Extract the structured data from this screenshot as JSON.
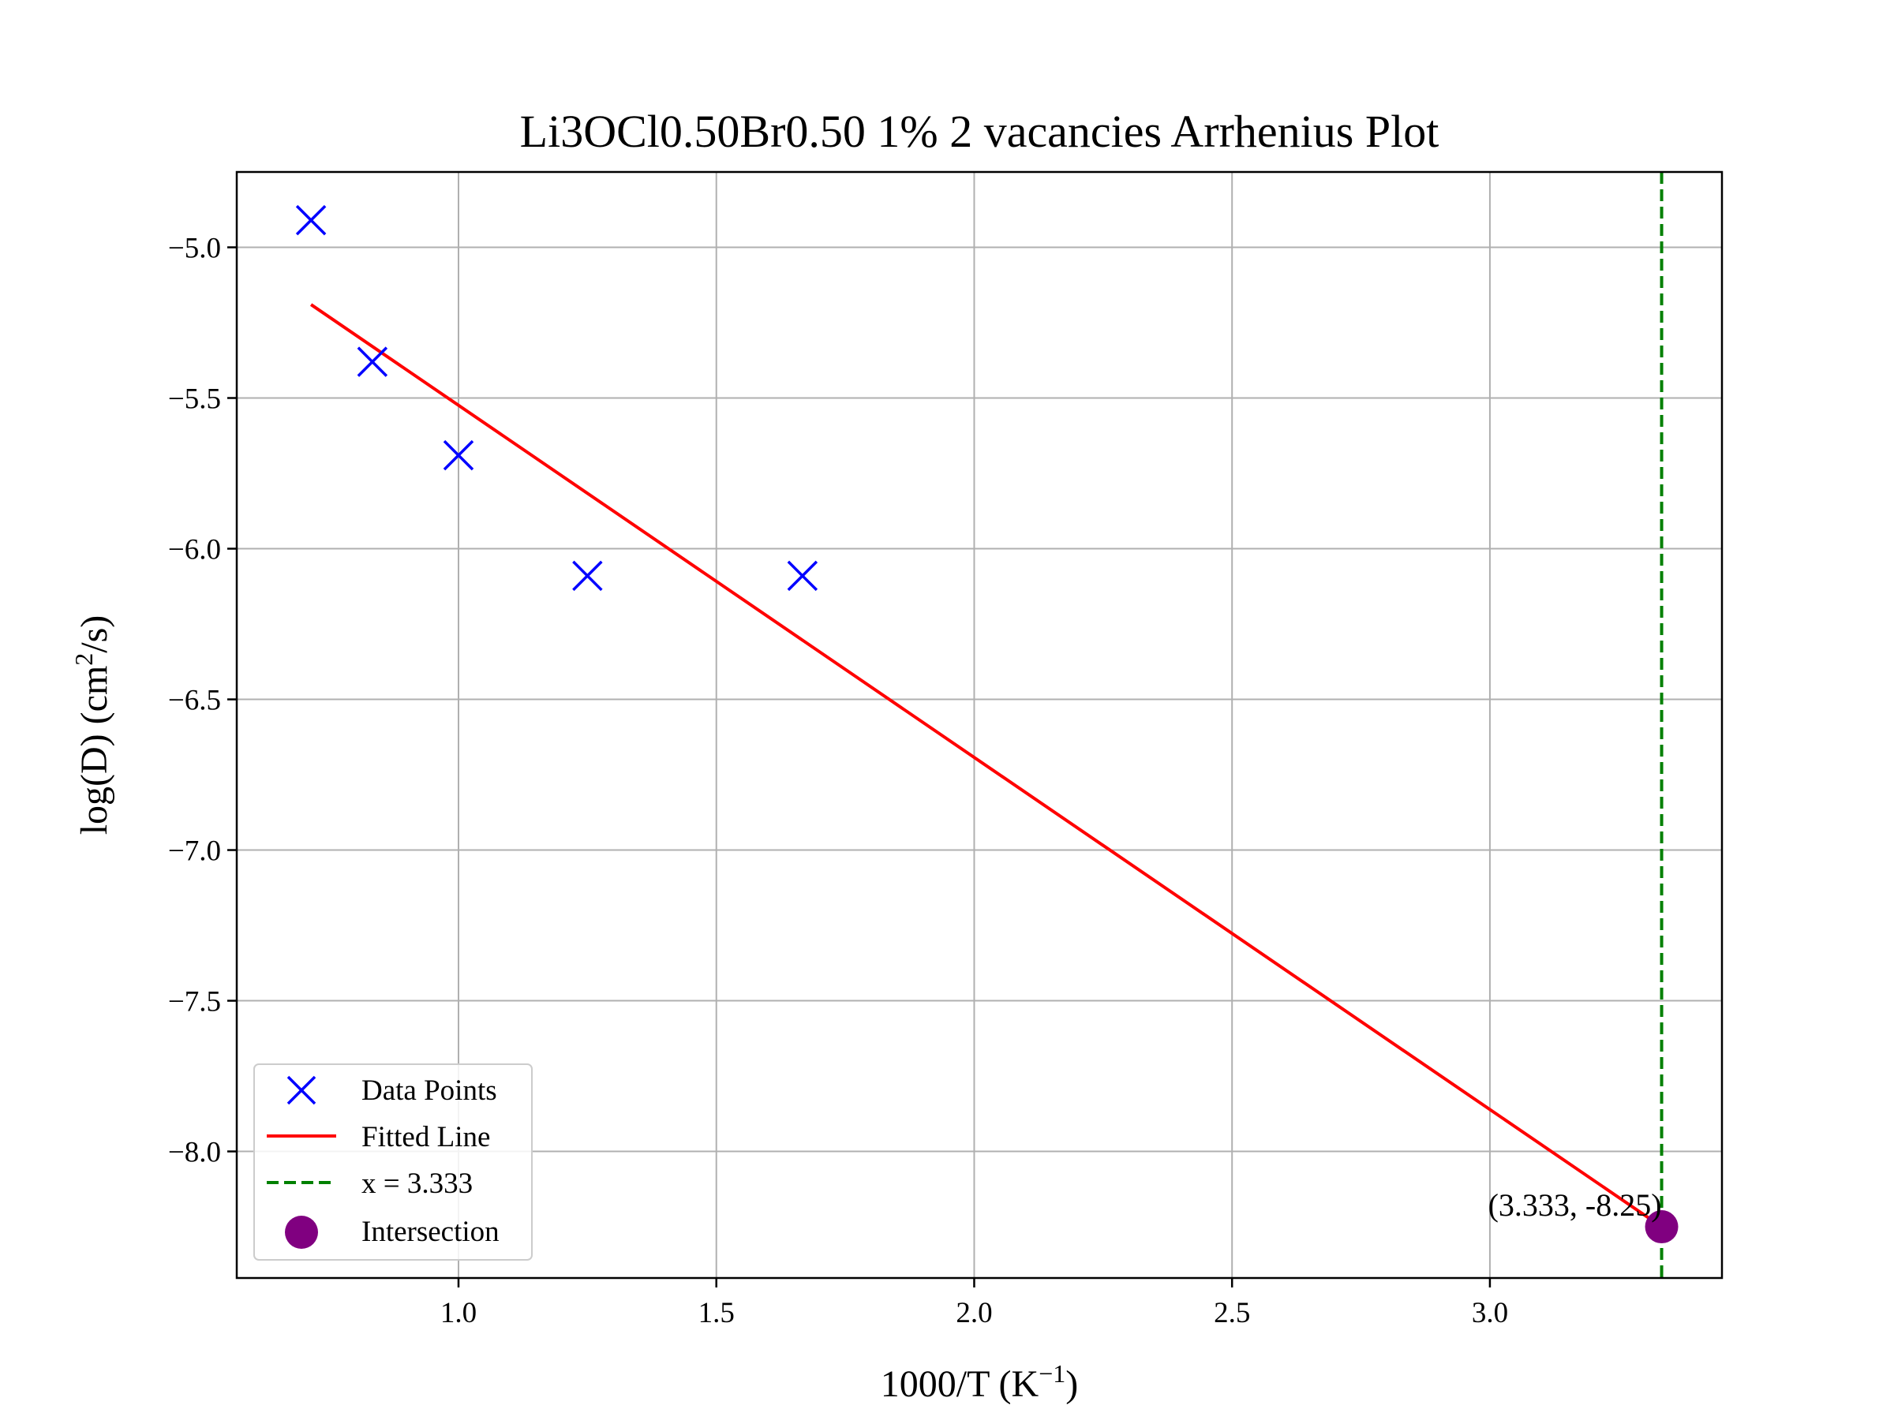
{
  "chart_data": {
    "type": "scatter",
    "title": "Li3OCl0.50Br0.50 1% 2 vacancies Arrhenius Plot",
    "xlabel": "1000/T (K",
    "xlabel_sup": "−1",
    "xlabel_end": ")",
    "ylabel": "log(D) (cm",
    "ylabel_sup": "2",
    "ylabel_end": "/s)",
    "xlim": [
      0.57,
      3.45
    ],
    "ylim": [
      -8.42,
      -4.75
    ],
    "x_ticks": [
      1.0,
      1.5,
      2.0,
      2.5,
      3.0
    ],
    "x_tick_labels": [
      "1.0",
      "1.5",
      "2.0",
      "2.5",
      "3.0"
    ],
    "y_ticks": [
      -5.0,
      -5.5,
      -6.0,
      -6.5,
      -7.0,
      -7.5,
      -8.0
    ],
    "y_tick_labels": [
      "−5.0",
      "−5.5",
      "−6.0",
      "−6.5",
      "−7.0",
      "−7.5",
      "−8.0"
    ],
    "grid": true,
    "legend_position": "lower-left",
    "series": [
      {
        "name": "Data Points",
        "kind": "scatter-x",
        "color": "#0000ff",
        "x": [
          0.714,
          0.833,
          1.0,
          1.25,
          1.667
        ],
        "y": [
          -4.91,
          -5.38,
          -5.69,
          -6.09,
          -6.09
        ]
      },
      {
        "name": "Fitted Line",
        "kind": "line",
        "color": "#ff0000",
        "x": [
          0.714,
          3.333
        ],
        "y": [
          -5.19,
          -8.25
        ]
      },
      {
        "name": "x = 3.333",
        "kind": "vline-dashed",
        "color": "#008000",
        "x": 3.333
      },
      {
        "name": "Intersection",
        "kind": "scatter-dot",
        "color": "#800080",
        "x": [
          3.333
        ],
        "y": [
          -8.25
        ]
      }
    ],
    "annotation": {
      "text": "(3.333, -8.25)",
      "x": 3.333,
      "y": -8.25
    }
  }
}
